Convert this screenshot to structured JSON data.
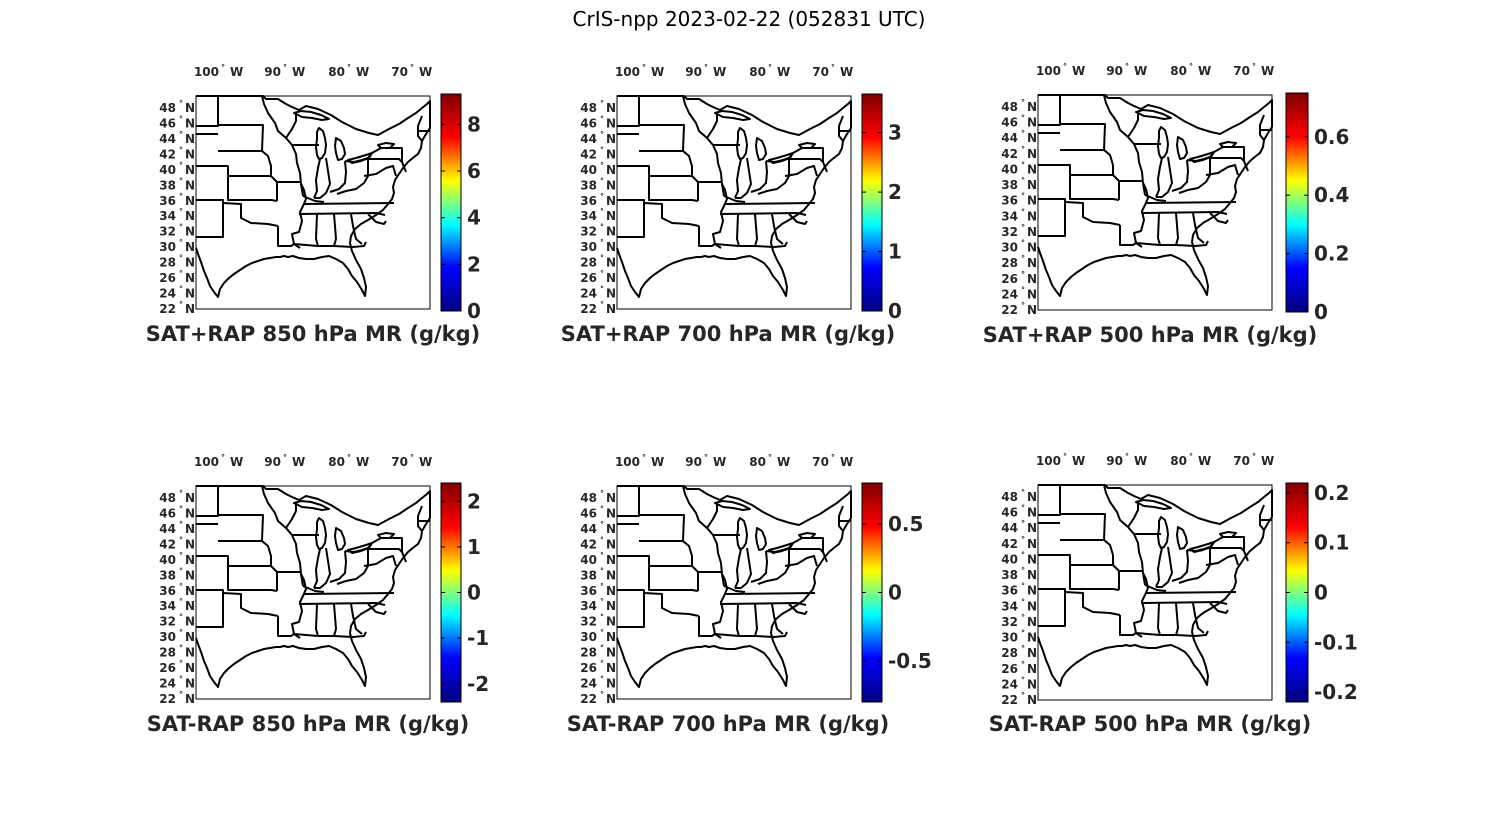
{
  "figure_title": "CrIS-npp 2023-02-22 (052831 UTC)",
  "colormap": {
    "name": "jet",
    "stops": [
      "#00007f",
      "#0000ff",
      "#00ffff",
      "#ffff00",
      "#ff0000",
      "#7f0000"
    ]
  },
  "map": {
    "region": "CONUS east of 105W",
    "lon_range": [
      -105,
      -66
    ],
    "lat_range": [
      22,
      50
    ],
    "lat_ticks": [
      "48",
      "46",
      "44",
      "42",
      "40",
      "38",
      "36",
      "34",
      "32",
      "30",
      "28",
      "26",
      "24",
      "22"
    ],
    "lat_hemisphere": "N",
    "lon_ticks": [
      "100",
      "90",
      "80",
      "70"
    ],
    "lon_hemisphere": "W",
    "degree_symbol": "°",
    "fill": "#ffffff",
    "border_color": "#000000"
  },
  "panels": [
    {
      "id": "850-sum",
      "title": "SAT+RAP 850 hPa MR (g/kg)",
      "colorbar": {
        "min": 0,
        "max": 9.3,
        "ticks": [
          "0",
          "2",
          "4",
          "6",
          "8"
        ],
        "tick_values": [
          0,
          2,
          4,
          6,
          8
        ]
      }
    },
    {
      "id": "700-sum",
      "title": "SAT+RAP 700 hPa MR (g/kg)",
      "colorbar": {
        "min": 0,
        "max": 3.65,
        "ticks": [
          "0",
          "1",
          "2",
          "3"
        ],
        "tick_values": [
          0,
          1,
          2,
          3
        ]
      }
    },
    {
      "id": "500-sum",
      "title": "SAT+RAP 500 hPa MR (g/kg)",
      "colorbar": {
        "min": 0,
        "max": 0.75,
        "ticks": [
          "0",
          "0.2",
          "0.4",
          "0.6"
        ],
        "tick_values": [
          0,
          0.2,
          0.4,
          0.6
        ]
      }
    },
    {
      "id": "850-diff",
      "title": "SAT-RAP 850 hPa MR (g/kg)",
      "colorbar": {
        "min": -2.4,
        "max": 2.4,
        "ticks": [
          "-2",
          "-1",
          "0",
          "1",
          "2"
        ],
        "tick_values": [
          -2,
          -1,
          0,
          1,
          2
        ]
      }
    },
    {
      "id": "700-diff",
      "title": "SAT-RAP 700 hPa MR (g/kg)",
      "colorbar": {
        "min": -0.8,
        "max": 0.8,
        "ticks": [
          "-0.5",
          "0",
          "0.5"
        ],
        "tick_values": [
          -0.5,
          0,
          0.5
        ]
      }
    },
    {
      "id": "500-diff",
      "title": "SAT-RAP 500 hPa MR (g/kg)",
      "colorbar": {
        "min": -0.22,
        "max": 0.22,
        "ticks": [
          "-0.2",
          "-0.1",
          "0",
          "0.1",
          "0.2"
        ],
        "tick_values": [
          -0.2,
          -0.1,
          0,
          0.1,
          0.2
        ]
      }
    }
  ]
}
